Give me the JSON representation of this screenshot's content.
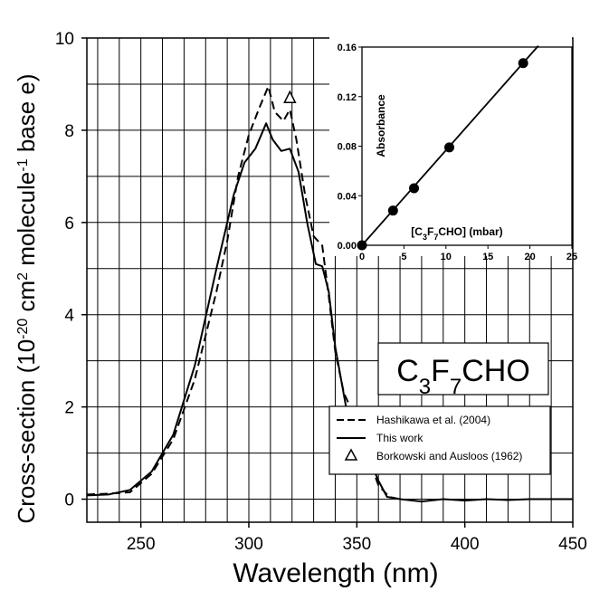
{
  "chart_data": [
    {
      "type": "line",
      "xlabel": "Wavelength (nm)",
      "ylabel": {
        "parts": [
          "Cross-section (10",
          "-20",
          " cm",
          "2",
          " molecule",
          "-1",
          " base e)"
        ]
      },
      "xlim": [
        225,
        450
      ],
      "ylim": [
        -0.5,
        10
      ],
      "x_ticks": [
        250,
        300,
        350,
        400,
        450
      ],
      "y_ticks": [
        0,
        2,
        4,
        6,
        8,
        10
      ],
      "grid": true,
      "legend_position": "bottom-right",
      "annotation_box": {
        "parts": [
          "C",
          "3",
          "F",
          "7",
          "CHO"
        ]
      },
      "legend": [
        {
          "label": "Hashikawa et al. (2004)",
          "style": "dashed"
        },
        {
          "label": "This work",
          "style": "solid"
        },
        {
          "label": "Borkowski and Ausloos (1962)",
          "style": "triangle"
        }
      ],
      "series": [
        {
          "name": "Hashikawa et al. (2004)",
          "style": "dashed",
          "points": [
            [
              225,
              0.1
            ],
            [
              235,
              0.12
            ],
            [
              245,
              0.15
            ],
            [
              255,
              0.55
            ],
            [
              265,
              1.3
            ],
            [
              275,
              2.6
            ],
            [
              285,
              4.5
            ],
            [
              290,
              5.6
            ],
            [
              295,
              7.0
            ],
            [
              300,
              7.9
            ],
            [
              305,
              8.5
            ],
            [
              309,
              8.95
            ],
            [
              312,
              8.4
            ],
            [
              316,
              8.2
            ],
            [
              319,
              8.45
            ],
            [
              322,
              7.8
            ],
            [
              326,
              6.6
            ],
            [
              330,
              5.7
            ],
            [
              334,
              5.5
            ],
            [
              337,
              4.4
            ],
            [
              340,
              3.2
            ],
            [
              344,
              2.3
            ],
            [
              350,
              1.7
            ],
            [
              355,
              0.95
            ],
            [
              360,
              0.3
            ],
            [
              365,
              0.05
            ],
            [
              370,
              0.0
            ]
          ]
        },
        {
          "name": "This work",
          "style": "solid",
          "points": [
            [
              225,
              0.08
            ],
            [
              235,
              0.1
            ],
            [
              245,
              0.2
            ],
            [
              255,
              0.6
            ],
            [
              265,
              1.4
            ],
            [
              275,
              2.9
            ],
            [
              285,
              5.0
            ],
            [
              293,
              6.6
            ],
            [
              298,
              7.3
            ],
            [
              303,
              7.6
            ],
            [
              308,
              8.15
            ],
            [
              311,
              7.8
            ],
            [
              315,
              7.55
            ],
            [
              319,
              7.6
            ],
            [
              323,
              7.1
            ],
            [
              327,
              6.0
            ],
            [
              331,
              5.1
            ],
            [
              334,
              5.05
            ],
            [
              337,
              4.5
            ],
            [
              340,
              3.3
            ],
            [
              345,
              2.0
            ],
            [
              350,
              1.6
            ],
            [
              355,
              0.95
            ],
            [
              360,
              0.4
            ],
            [
              364,
              0.05
            ],
            [
              370,
              0.0
            ],
            [
              380,
              -0.05
            ],
            [
              390,
              0.0
            ],
            [
              400,
              -0.03
            ],
            [
              410,
              0.0
            ],
            [
              420,
              -0.02
            ],
            [
              430,
              0.0
            ],
            [
              440,
              0.0
            ],
            [
              450,
              0.0
            ]
          ]
        },
        {
          "name": "Borkowski and Ausloos (1962)",
          "style": "triangle",
          "points": [
            [
              319,
              8.7
            ]
          ]
        }
      ]
    },
    {
      "type": "scatter",
      "inset": true,
      "xlabel": {
        "parts": [
          "[C",
          "3",
          "F",
          "7",
          "CHO] (mbar)"
        ]
      },
      "ylabel": "Absorbance",
      "xlim": [
        0,
        25
      ],
      "ylim": [
        0,
        0.16
      ],
      "x_ticks": [
        0,
        5,
        10,
        15,
        20,
        25
      ],
      "y_ticks": [
        "0.00",
        "0.04",
        "0.08",
        "0.12",
        "0.16"
      ],
      "grid": false,
      "points": [
        [
          0,
          0.0
        ],
        [
          3.7,
          0.028
        ],
        [
          6.2,
          0.046
        ],
        [
          10.4,
          0.079
        ],
        [
          19.2,
          0.147
        ]
      ],
      "fit_line": [
        [
          0,
          0.0
        ],
        [
          21,
          0.161
        ]
      ]
    }
  ]
}
